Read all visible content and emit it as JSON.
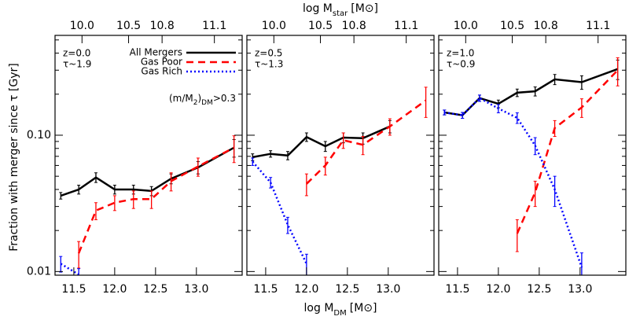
{
  "chart_data": [
    {
      "type": "line",
      "ylabel": "Fraction with merger since τ [Gyr]",
      "annotations": [
        "z=0.0",
        "τ~1.9"
      ],
      "ratio_label": [
        "(m/M",
        "2",
        ")",
        "DM",
        ">0.3"
      ],
      "x": [
        11.34,
        11.56,
        11.77,
        12.0,
        12.23,
        12.45,
        12.69,
        13.02,
        13.46
      ],
      "xlim": [
        11.27,
        13.56
      ],
      "xticks": [
        11.5,
        {
          "value": 12,
          "label": "12.0"
        },
        12.5,
        {
          "value": 13,
          "label": "13.0"
        }
      ],
      "top_ticks": [
        {
          "value": 10,
          "label": "10.0"
        },
        10.5,
        10.8,
        11.1
      ],
      "top_ticks_dm": [
        11.6,
        12.17,
        12.58,
        13.22
      ],
      "ylim": [
        0.0094,
        0.54
      ],
      "log_y": true,
      "yticks": [
        0.01,
        {
          "value": 0.1,
          "label": "0.10"
        }
      ],
      "yminor": [
        0.02,
        0.03,
        0.04,
        0.05,
        0.06,
        0.07,
        0.08,
        0.09,
        0.2,
        0.3,
        0.4,
        0.5
      ],
      "series": [
        {
          "name": "All Mergers",
          "color": "#000000",
          "dash": "solid",
          "values": [
            0.036,
            0.04,
            0.049,
            0.04,
            0.04,
            0.039,
            0.048,
            0.058,
            0.081
          ],
          "errors": [
            0.002,
            0.003,
            0.004,
            0.003,
            0.003,
            0.003,
            0.004,
            0.006,
            0.012
          ]
        },
        {
          "name": "Gas Poor",
          "color": "#ff0000",
          "dash": "dashed",
          "values": [
            null,
            0.0136,
            0.028,
            0.032,
            0.034,
            0.034,
            0.046,
            0.059,
            0.081
          ],
          "errors": [
            null,
            0.003,
            0.004,
            0.004,
            0.005,
            0.005,
            0.007,
            0.009,
            0.018
          ]
        },
        {
          "name": "Gas Rich",
          "color": "#0000ff",
          "dash": "dotted",
          "values": [
            0.0114,
            0.0095,
            null,
            null,
            null,
            null,
            null,
            null,
            null
          ],
          "errors": [
            0.0015,
            0.001,
            null,
            null,
            null,
            null,
            null,
            null,
            null
          ]
        }
      ]
    },
    {
      "type": "line",
      "xlabel": [
        "log M",
        "DM",
        "[M⊙]"
      ],
      "toplabel": [
        "log M",
        "star",
        "[M⊙]"
      ],
      "annotations": [
        "z=0.5",
        "τ~1.3"
      ],
      "x": [
        11.34,
        11.56,
        11.77,
        12.0,
        12.23,
        12.45,
        12.69,
        13.02,
        13.46
      ],
      "xlim": [
        11.27,
        13.56
      ],
      "xticks": [
        11.5,
        {
          "value": 12,
          "label": "12.0"
        },
        12.5,
        {
          "value": 13,
          "label": "13.0"
        }
      ],
      "top_ticks": [
        {
          "value": 10,
          "label": "10.0"
        },
        10.5,
        10.8,
        11.1
      ],
      "top_ticks_dm": [
        11.6,
        12.17,
        12.58,
        13.22
      ],
      "ylim": [
        0.0094,
        0.54
      ],
      "log_y": true,
      "yticks": [
        0.01,
        {
          "value": 0.1,
          "label": "0.10"
        }
      ],
      "yminor": [
        0.02,
        0.03,
        0.04,
        0.05,
        0.06,
        0.07,
        0.08,
        0.09,
        0.2,
        0.3,
        0.4,
        0.5
      ],
      "series": [
        {
          "color": "#000000",
          "dash": "solid",
          "values": [
            0.069,
            0.073,
            0.071,
            0.097,
            0.083,
            0.096,
            0.095,
            0.116,
            null
          ],
          "errors": [
            0.004,
            0.004,
            0.005,
            0.007,
            0.007,
            0.008,
            0.009,
            0.012,
            null
          ]
        },
        {
          "color": "#ff0000",
          "dash": "dashed",
          "values": [
            null,
            null,
            null,
            0.044,
            0.06,
            0.092,
            0.085,
            0.116,
            0.18
          ],
          "errors": [
            null,
            null,
            null,
            0.008,
            0.009,
            0.012,
            0.013,
            0.016,
            0.045
          ]
        },
        {
          "color": "#0000ff",
          "dash": "dotted",
          "values": [
            0.064,
            0.045,
            0.022,
            0.0114,
            null,
            null,
            null,
            null,
            null
          ],
          "errors": [
            0.004,
            0.004,
            0.003,
            0.002,
            null,
            null,
            null,
            null,
            null
          ]
        }
      ]
    },
    {
      "type": "line",
      "annotations": [
        "z=1.0",
        "τ~0.9"
      ],
      "x": [
        11.34,
        11.56,
        11.77,
        12.0,
        12.23,
        12.45,
        12.69,
        13.02,
        13.46
      ],
      "xlim": [
        11.27,
        13.56
      ],
      "xticks": [
        11.5,
        {
          "value": 12,
          "label": "12.0"
        },
        12.5,
        {
          "value": 13,
          "label": "13.0"
        }
      ],
      "top_ticks": [
        {
          "value": 10,
          "label": "10.0"
        },
        10.5,
        10.8,
        11.1
      ],
      "top_ticks_dm": [
        11.6,
        12.17,
        12.58,
        13.22
      ],
      "ylim": [
        0.0094,
        0.54
      ],
      "log_y": true,
      "yticks": [
        0.01,
        {
          "value": 0.1,
          "label": "0.10"
        }
      ],
      "yminor": [
        0.02,
        0.03,
        0.04,
        0.05,
        0.06,
        0.07,
        0.08,
        0.09,
        0.2,
        0.3,
        0.4,
        0.5
      ],
      "series": [
        {
          "color": "#000000",
          "dash": "solid",
          "values": [
            0.147,
            0.14,
            0.187,
            0.17,
            0.205,
            0.21,
            0.257,
            0.245,
            0.306
          ],
          "errors": [
            0.006,
            0.007,
            0.01,
            0.011,
            0.013,
            0.016,
            0.022,
            0.028,
            0.05
          ]
        },
        {
          "color": "#ff0000",
          "dash": "dashed",
          "values": [
            null,
            null,
            null,
            null,
            0.019,
            0.038,
            0.113,
            0.16,
            0.3
          ],
          "errors": [
            null,
            null,
            null,
            null,
            0.005,
            0.008,
            0.015,
            0.025,
            0.07
          ]
        },
        {
          "color": "#0000ff",
          "dash": "dotted",
          "values": [
            0.147,
            0.14,
            0.187,
            0.157,
            0.134,
            0.084,
            0.04,
            0.0107,
            null
          ],
          "errors": [
            0.006,
            0.007,
            0.01,
            0.011,
            0.012,
            0.012,
            0.01,
            0.003,
            null
          ]
        }
      ]
    }
  ]
}
